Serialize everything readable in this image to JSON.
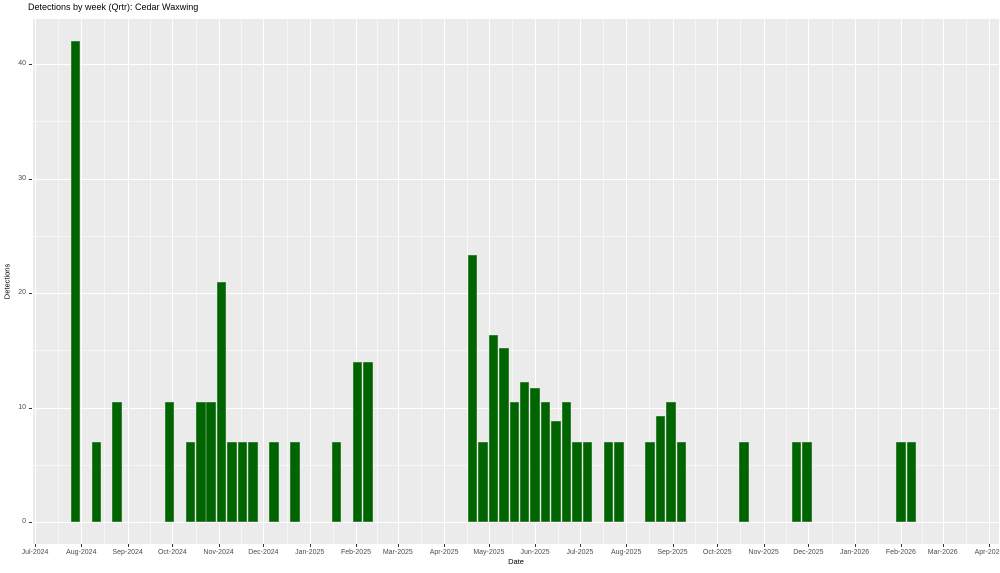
{
  "chart_data": {
    "type": "bar",
    "title": "Detections by week (Qrtr): Cedar Waxwing",
    "xlabel": "Date",
    "ylabel": "Detections",
    "x_domain": [
      "2024-07-01",
      "2026-04-30"
    ],
    "ylim": [
      0,
      42
    ],
    "grid": "on",
    "legend": "none",
    "bar_color": "#006400",
    "panel_bg": "#EBEBEB",
    "grid_color": "#FFFFFF",
    "axis_text_color": "#4D4D4D",
    "y_ticks": [
      0,
      10,
      20,
      30,
      40
    ],
    "y_minor_ticks": [
      5,
      15,
      25,
      35
    ],
    "x_ticks": [
      {
        "date": "2024-07-01",
        "label": "Jul-2024"
      },
      {
        "date": "2024-08-01",
        "label": "Aug-2024"
      },
      {
        "date": "2024-09-01",
        "label": "Sep-2024"
      },
      {
        "date": "2024-10-01",
        "label": "Oct-2024"
      },
      {
        "date": "2024-11-01",
        "label": "Nov-2024"
      },
      {
        "date": "2024-12-01",
        "label": "Dec-2024"
      },
      {
        "date": "2025-01-01",
        "label": "Jan-2025"
      },
      {
        "date": "2025-02-01",
        "label": "Feb-2025"
      },
      {
        "date": "2025-03-01",
        "label": "Mar-2025"
      },
      {
        "date": "2025-04-01",
        "label": "Apr-2025"
      },
      {
        "date": "2025-05-01",
        "label": "May-2025"
      },
      {
        "date": "2025-06-01",
        "label": "Jun-2025"
      },
      {
        "date": "2025-07-01",
        "label": "Jul-2025"
      },
      {
        "date": "2025-08-01",
        "label": "Aug-2025"
      },
      {
        "date": "2025-09-01",
        "label": "Sep-2025"
      },
      {
        "date": "2025-10-01",
        "label": "Oct-2025"
      },
      {
        "date": "2025-11-01",
        "label": "Nov-2025"
      },
      {
        "date": "2025-12-01",
        "label": "Dec-2025"
      },
      {
        "date": "2026-01-01",
        "label": "Jan-2026"
      },
      {
        "date": "2026-02-01",
        "label": "Feb-2026"
      },
      {
        "date": "2026-03-01",
        "label": "Mar-2026"
      },
      {
        "date": "2026-04-01",
        "label": "Apr-2026"
      }
    ],
    "bars": [
      {
        "week": "2024-07-28",
        "detections": 42
      },
      {
        "week": "2024-08-11",
        "detections": 7
      },
      {
        "week": "2024-08-25",
        "detections": 10.5
      },
      {
        "week": "2024-09-29",
        "detections": 10.5
      },
      {
        "week": "2024-10-13",
        "detections": 7
      },
      {
        "week": "2024-10-20",
        "detections": 10.5
      },
      {
        "week": "2024-10-27",
        "detections": 10.5
      },
      {
        "week": "2024-11-03",
        "detections": 21
      },
      {
        "week": "2024-11-10",
        "detections": 7
      },
      {
        "week": "2024-11-17",
        "detections": 7
      },
      {
        "week": "2024-11-24",
        "detections": 7
      },
      {
        "week": "2024-12-08",
        "detections": 7
      },
      {
        "week": "2024-12-22",
        "detections": 7
      },
      {
        "week": "2025-01-19",
        "detections": 7
      },
      {
        "week": "2025-02-02",
        "detections": 14
      },
      {
        "week": "2025-02-09",
        "detections": 14
      },
      {
        "week": "2025-04-20",
        "detections": 23.3
      },
      {
        "week": "2025-04-27",
        "detections": 7
      },
      {
        "week": "2025-05-04",
        "detections": 16.3
      },
      {
        "week": "2025-05-11",
        "detections": 15.2
      },
      {
        "week": "2025-05-18",
        "detections": 10.5
      },
      {
        "week": "2025-05-25",
        "detections": 12.2
      },
      {
        "week": "2025-06-01",
        "detections": 11.7
      },
      {
        "week": "2025-06-08",
        "detections": 10.5
      },
      {
        "week": "2025-06-15",
        "detections": 8.8
      },
      {
        "week": "2025-06-22",
        "detections": 10.5
      },
      {
        "week": "2025-06-29",
        "detections": 7
      },
      {
        "week": "2025-07-06",
        "detections": 7
      },
      {
        "week": "2025-07-20",
        "detections": 7
      },
      {
        "week": "2025-07-27",
        "detections": 7
      },
      {
        "week": "2025-08-17",
        "detections": 7
      },
      {
        "week": "2025-08-24",
        "detections": 9.3
      },
      {
        "week": "2025-08-31",
        "detections": 10.5
      },
      {
        "week": "2025-09-07",
        "detections": 7
      },
      {
        "week": "2025-10-19",
        "detections": 7
      },
      {
        "week": "2025-11-23",
        "detections": 7
      },
      {
        "week": "2025-11-30",
        "detections": 7
      },
      {
        "week": "2026-02-01",
        "detections": 7
      },
      {
        "week": "2026-02-08",
        "detections": 7
      }
    ]
  }
}
